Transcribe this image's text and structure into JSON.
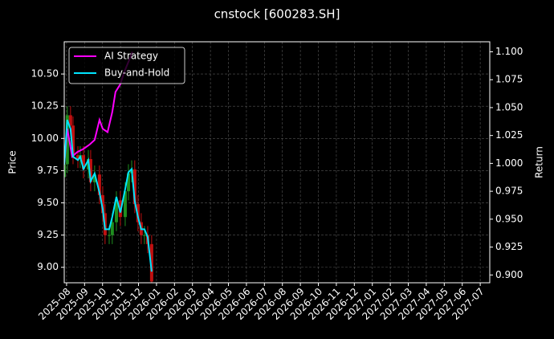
{
  "chart_data": {
    "type": "candlestick",
    "title": "cnstock [600283.SH]",
    "ylabel": "Price",
    "y2label": "Return",
    "xlim": [
      -0.13,
      23.53
    ],
    "xticks": [
      {
        "value": 0,
        "label": "2025-08"
      },
      {
        "value": 1,
        "label": "2025-09"
      },
      {
        "value": 2,
        "label": "2025-10"
      },
      {
        "value": 3,
        "label": "2025-11"
      },
      {
        "value": 4,
        "label": "2025-12"
      },
      {
        "value": 5,
        "label": "2026-01"
      },
      {
        "value": 6,
        "label": "2026-02"
      },
      {
        "value": 7,
        "label": "2026-03"
      },
      {
        "value": 8,
        "label": "2026-04"
      },
      {
        "value": 9,
        "label": "2026-05"
      },
      {
        "value": 10,
        "label": "2026-06"
      },
      {
        "value": 11,
        "label": "2026-07"
      },
      {
        "value": 12,
        "label": "2026-08"
      },
      {
        "value": 13,
        "label": "2026-09"
      },
      {
        "value": 14,
        "label": "2026-10"
      },
      {
        "value": 15,
        "label": "2026-11"
      },
      {
        "value": 16,
        "label": "2026-12"
      },
      {
        "value": 17,
        "label": "2027-01"
      },
      {
        "value": 18,
        "label": "2027-02"
      },
      {
        "value": 19,
        "label": "2027-03"
      },
      {
        "value": 20,
        "label": "2027-04"
      },
      {
        "value": 21,
        "label": "2027-05"
      },
      {
        "value": 22,
        "label": "2027-06"
      },
      {
        "value": 23,
        "label": "2027-07"
      }
    ],
    "ylim": [
      8.88,
      10.75
    ],
    "yticks": [
      {
        "value": 9,
        "label": "9.00"
      },
      9.25,
      {
        "value": 9.5,
        "label": "9.50"
      },
      9.75,
      {
        "value": 10,
        "label": "10.00"
      },
      10.25,
      {
        "value": 10.5,
        "label": "10.50"
      }
    ],
    "y2lim": [
      0.893,
      1.109
    ],
    "y2ticks": [
      {
        "value": 0.9,
        "label": "0.900"
      },
      0.925,
      {
        "value": 0.95,
        "label": "0.950"
      },
      0.975,
      {
        "value": 1,
        "label": "1.000"
      },
      1.025,
      {
        "value": 1.05,
        "label": "1.050"
      },
      1.075,
      {
        "value": 1.1,
        "label": "1.100"
      }
    ],
    "grid": true,
    "legend": "upper left",
    "candles": {
      "up_color": "#1f8f1f",
      "down_color": "#c01010",
      "x": [
        -0.13,
        0.04,
        0.22,
        0.36,
        0.63,
        0.76,
        0.94,
        1.21,
        1.34,
        1.56,
        1.83,
        2.01,
        2.14,
        2.37,
        2.54,
        2.77,
        2.99,
        3.26,
        3.44,
        3.62,
        3.79,
        3.97,
        4.15,
        4.33,
        4.51,
        4.73
      ],
      "open": [
        9.7,
        9.8,
        10.18,
        10.1,
        9.87,
        9.84,
        9.87,
        9.76,
        9.84,
        9.66,
        9.72,
        9.56,
        9.42,
        9.25,
        9.25,
        9.35,
        9.52,
        9.39,
        9.59,
        9.73,
        9.76,
        9.49,
        9.35,
        9.25,
        9.25,
        9.18
      ],
      "high": [
        9.87,
        10.25,
        10.25,
        10.17,
        9.94,
        9.94,
        9.94,
        9.91,
        9.91,
        9.79,
        9.79,
        9.63,
        9.49,
        9.32,
        9.42,
        9.59,
        9.59,
        9.66,
        9.8,
        9.83,
        9.83,
        9.56,
        9.42,
        9.32,
        9.32,
        9.25
      ],
      "low": [
        9.63,
        9.73,
        10.03,
        9.8,
        9.77,
        9.77,
        9.69,
        9.69,
        9.59,
        9.59,
        9.49,
        9.35,
        9.18,
        9.18,
        9.18,
        9.28,
        9.32,
        9.32,
        9.52,
        9.66,
        9.42,
        9.28,
        9.18,
        9.18,
        9.11,
        8.82
      ],
      "close": [
        9.8,
        10.18,
        10.1,
        9.87,
        9.84,
        9.87,
        9.76,
        9.84,
        9.66,
        9.72,
        9.56,
        9.42,
        9.25,
        9.25,
        9.35,
        9.52,
        9.39,
        9.59,
        9.73,
        9.76,
        9.49,
        9.35,
        9.25,
        9.25,
        9.18,
        8.89
      ]
    },
    "series": [
      {
        "name": "AI Strategy",
        "color": "#ff00ff",
        "axis": "y2",
        "x": [
          -0.13,
          0.04,
          0.31,
          0.58,
          0.94,
          1.29,
          1.56,
          1.83,
          2.01,
          2.28,
          2.54,
          2.72,
          2.99,
          3.21,
          3.44,
          3.66
        ],
        "values": [
          0.999,
          1.031,
          1.006,
          1.01,
          1.013,
          1.017,
          1.021,
          1.039,
          1.031,
          1.028,
          1.046,
          1.064,
          1.071,
          1.082,
          1.091,
          1.1
        ]
      },
      {
        "name": "Buy-and-Hold",
        "color": "#00e5ff",
        "axis": "y2",
        "x": [
          -0.13,
          0.04,
          0.22,
          0.36,
          0.63,
          0.76,
          0.94,
          1.21,
          1.34,
          1.56,
          1.83,
          2.01,
          2.14,
          2.37,
          2.54,
          2.77,
          2.99,
          3.26,
          3.44,
          3.62,
          3.79,
          3.97,
          4.15,
          4.33,
          4.51,
          4.73
        ],
        "values": [
          0.999,
          1.039,
          1.031,
          1.006,
          1.003,
          1.006,
          0.995,
          1.003,
          0.984,
          0.991,
          0.974,
          0.959,
          0.941,
          0.941,
          0.952,
          0.97,
          0.956,
          0.977,
          0.992,
          0.995,
          0.966,
          0.952,
          0.941,
          0.941,
          0.934,
          0.903
        ]
      }
    ]
  }
}
